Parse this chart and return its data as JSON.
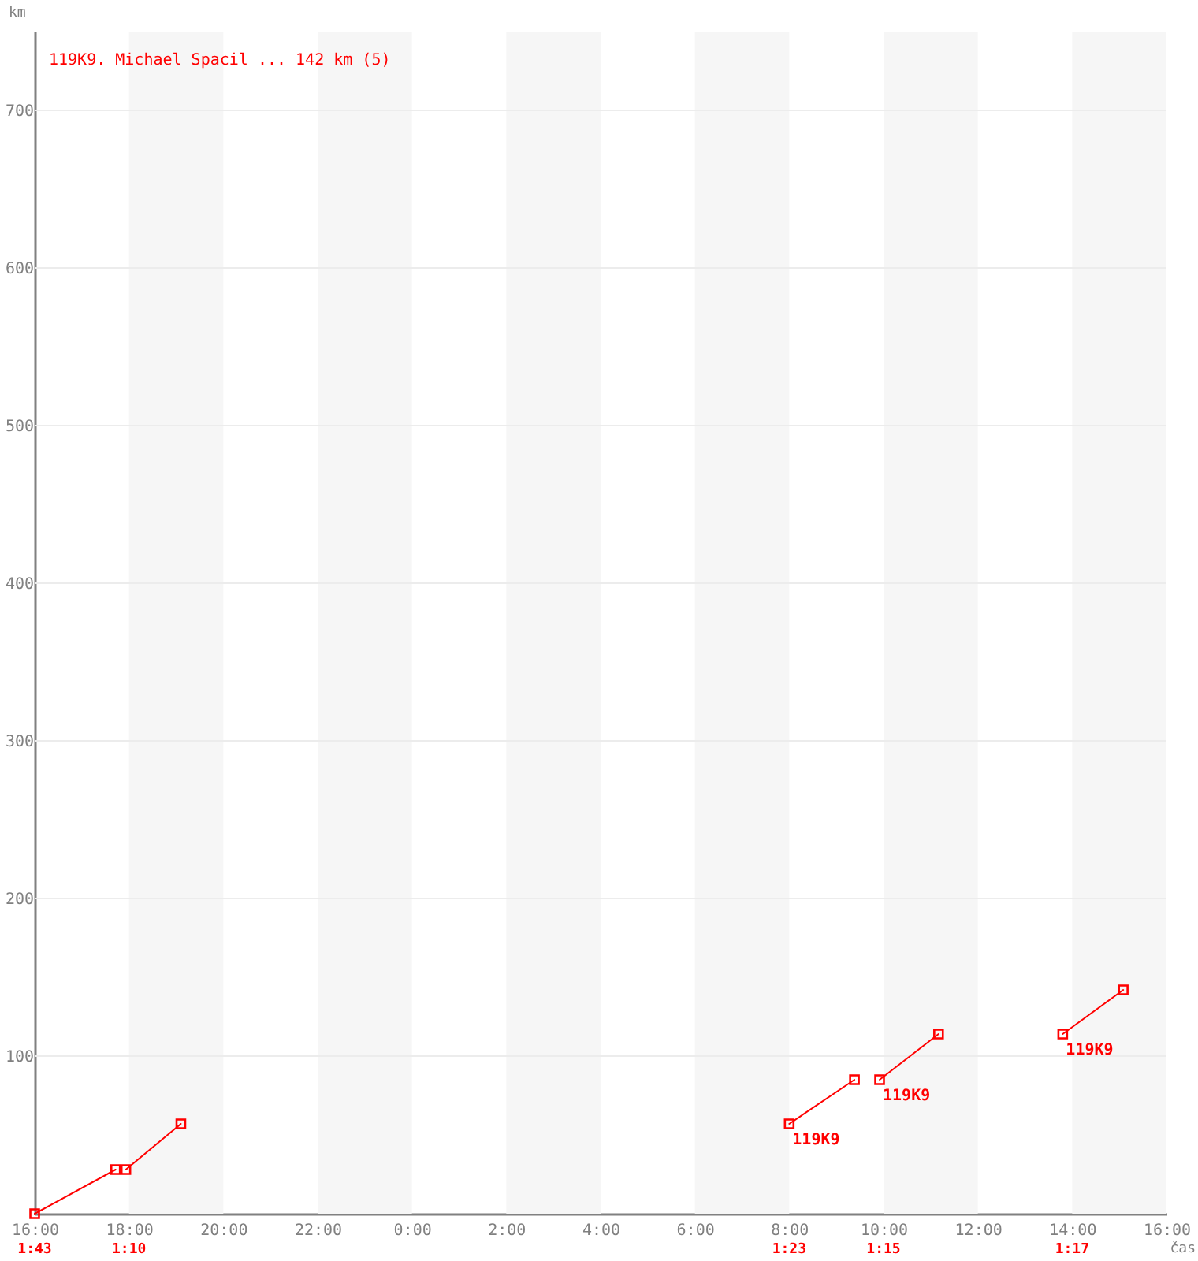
{
  "chart_data": {
    "type": "line",
    "title": "119K9. Michael Spacil ... 142 km (5)",
    "xlabel": "čas",
    "ylabel": "km",
    "series": [
      {
        "color": "#ff0000",
        "x": [
          "2000-01-01T16:00",
          "2000-01-01T17:43"
        ],
        "values": [
          0,
          28
        ]
      },
      {
        "color": "#ff0000",
        "x": [
          "2000-01-01T17:56",
          "2000-01-01T19:06"
        ],
        "values": [
          28,
          57
        ]
      },
      {
        "color": "#ff0000",
        "x": [
          "2000-01-02T08:00",
          "2000-01-02T09:23"
        ],
        "values": [
          57,
          85
        ]
      },
      {
        "color": "#ff0000",
        "x": [
          "2000-01-02T09:55",
          "2000-01-02T11:10"
        ],
        "values": [
          85,
          114
        ]
      },
      {
        "color": "#ff0000",
        "x": [
          "2000-01-02T13:48",
          "2000-01-02T15:05"
        ],
        "values": [
          114,
          142
        ]
      }
    ],
    "xlim": [
      "2000-01-01T16:00",
      "2000-01-02T16:00"
    ],
    "xticks": [
      {
        "value": "2000-01-01T16:00",
        "label": "16:00"
      },
      {
        "value": "2000-01-01T18:00",
        "label": "18:00"
      },
      {
        "value": "2000-01-01T20:00",
        "label": "20:00"
      },
      {
        "value": "2000-01-01T22:00",
        "label": "22:00"
      },
      {
        "value": "2000-01-02T00:00",
        "label": "0:00"
      },
      {
        "value": "2000-01-02T02:00",
        "label": "2:00"
      },
      {
        "value": "2000-01-02T04:00",
        "label": "4:00"
      },
      {
        "value": "2000-01-02T06:00",
        "label": "6:00"
      },
      {
        "value": "2000-01-02T08:00",
        "label": "8:00"
      },
      {
        "value": "2000-01-02T10:00",
        "label": "10:00"
      },
      {
        "value": "2000-01-02T12:00",
        "label": "12:00"
      },
      {
        "value": "2000-01-02T14:00",
        "label": "14:00"
      },
      {
        "value": "2000-01-02T16:00",
        "label": "16:00"
      }
    ],
    "ylim": [
      0,
      750
    ],
    "yticks": [
      100,
      200,
      300,
      400,
      500,
      600,
      700
    ],
    "bands": [
      {
        "axis": "x",
        "from": "2000-01-01T18:00",
        "to": "2000-01-01T20:00",
        "color": "#f6f6f6"
      },
      {
        "axis": "x",
        "from": "2000-01-01T22:00",
        "to": "2000-01-02T00:00",
        "color": "#f6f6f6"
      },
      {
        "axis": "x",
        "from": "2000-01-02T02:00",
        "to": "2000-01-02T04:00",
        "color": "#f6f6f6"
      },
      {
        "axis": "x",
        "from": "2000-01-02T06:00",
        "to": "2000-01-02T08:00",
        "color": "#f6f6f6"
      },
      {
        "axis": "x",
        "from": "2000-01-02T10:00",
        "to": "2000-01-02T12:00",
        "color": "#f6f6f6"
      },
      {
        "axis": "x",
        "from": "2000-01-02T14:00",
        "to": "2000-01-02T16:00",
        "color": "#f6f6f6"
      }
    ],
    "annotations": [
      {
        "text": "119K9",
        "x": "2000-01-02T08:00",
        "y": 57
      },
      {
        "text": "119K9",
        "x": "2000-01-02T09:55",
        "y": 85
      },
      {
        "text": "119K9",
        "x": "2000-01-02T13:48",
        "y": 114
      },
      "1:43",
      "1:10",
      "1:23",
      "1:15",
      "1:17"
    ],
    "grid": "y",
    "marker": "square",
    "line_style": "solid"
  }
}
